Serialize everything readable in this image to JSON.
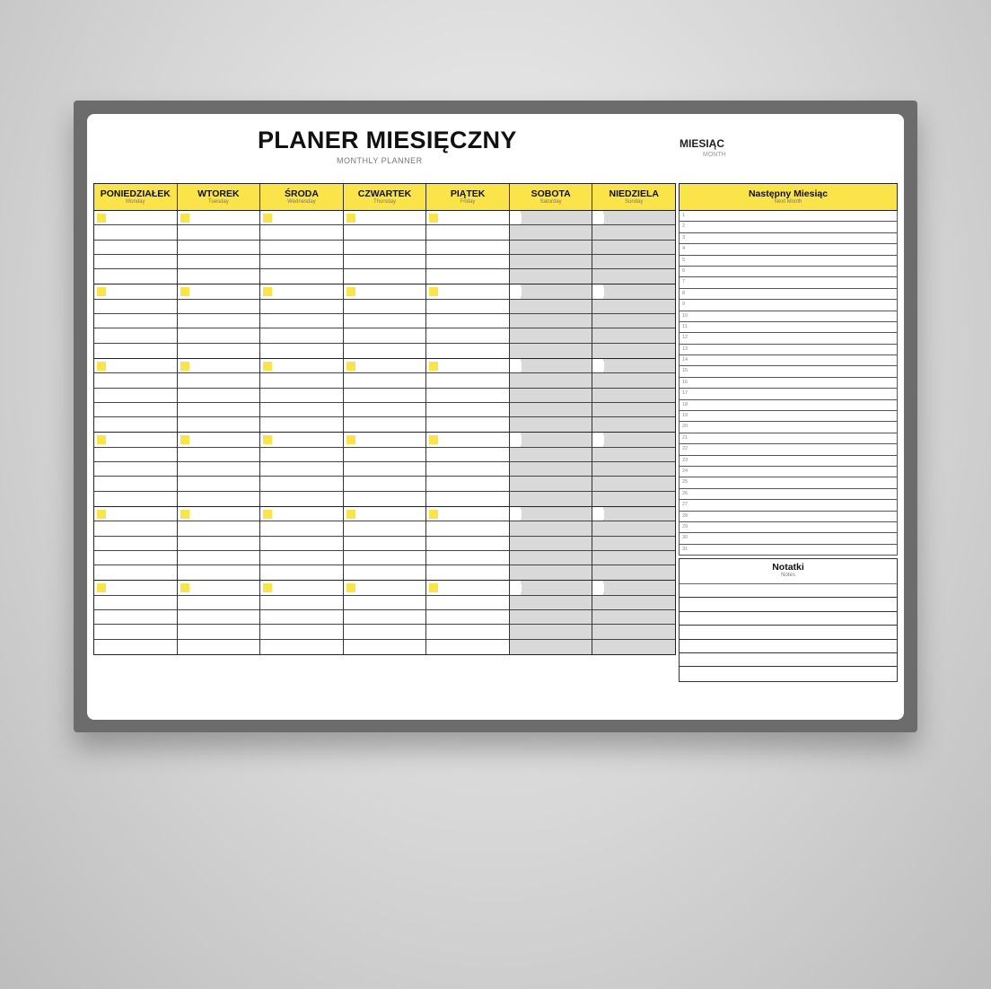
{
  "planner": {
    "title": "PLANER MIESIĘCZNY",
    "subtitle": "MONTHLY PLANNER",
    "month_label": "MIESIĄC",
    "month_sub": "MONTH",
    "days": [
      {
        "name": "PONIEDZIAŁEK",
        "en": "Monday",
        "weekend": false
      },
      {
        "name": "WTOREK",
        "en": "Tuesday",
        "weekend": false
      },
      {
        "name": "ŚRODA",
        "en": "Wednesday",
        "weekend": false
      },
      {
        "name": "CZWARTEK",
        "en": "Thursday",
        "weekend": false
      },
      {
        "name": "PIĄTEK",
        "en": "Friday",
        "weekend": false
      },
      {
        "name": "SOBOTA",
        "en": "Saturday",
        "weekend": true
      },
      {
        "name": "NIEDZIELA",
        "en": "Sunday",
        "weekend": true
      }
    ],
    "next_month": {
      "title": "Następny Miesiąc",
      "sub": "Next Month",
      "numbers": [
        "1",
        "2",
        "3",
        "4",
        "5",
        "6",
        "7",
        "8",
        "9",
        "10",
        "11",
        "12",
        "13",
        "14",
        "15",
        "16",
        "17",
        "18",
        "19",
        "20",
        "21",
        "22",
        "23",
        "24",
        "25",
        "26",
        "27",
        "28",
        "29",
        "30",
        "31"
      ]
    },
    "notes": {
      "title": "Notatki",
      "sub": "Notes"
    },
    "colors": {
      "accent": "#fbe34a",
      "weekend": "#d9d9d9",
      "frame": "#6c6c6c"
    }
  }
}
